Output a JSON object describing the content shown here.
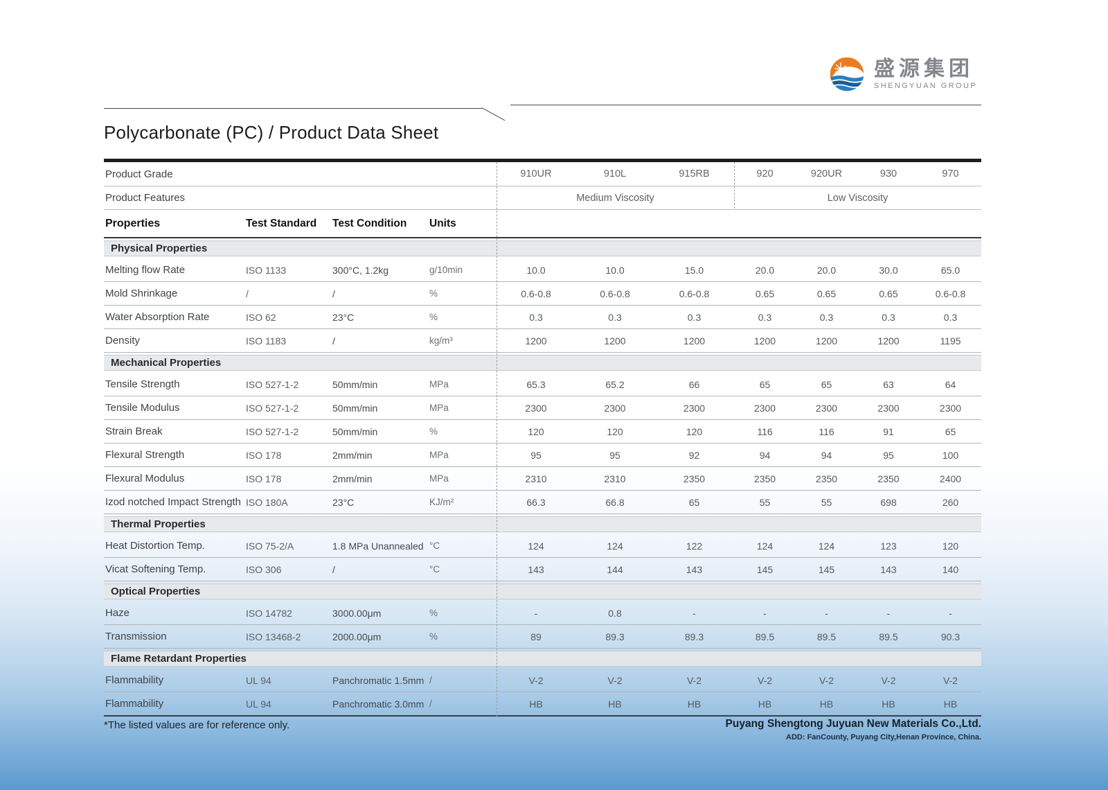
{
  "brand": {
    "logo_cn": "盛源集团",
    "logo_en": "SHENGYUAN GROUP",
    "colors": {
      "orange": "#ec7c1e",
      "blue": "#2a7fc1",
      "dark_blue": "#1b5e94",
      "gray_text": "#83878b"
    }
  },
  "title": "Polycarbonate (PC) / Product Data Sheet",
  "table": {
    "product_grade_label": "Product Grade",
    "product_features_label": "Product Features",
    "grades": [
      "910UR",
      "910L",
      "915RB",
      "920",
      "920UR",
      "930",
      "970"
    ],
    "feature_groups": [
      {
        "label": "Medium  Viscosity",
        "span": 3
      },
      {
        "label": "Low  Viscosity",
        "span": 4
      }
    ],
    "column_headers": [
      "Properties",
      "Test Standard",
      "Test Condition",
      "Units"
    ],
    "sections": [
      {
        "name": "Physical Properties",
        "rows": [
          {
            "property": "Melting flow Rate",
            "standard": "ISO 1133",
            "condition": "300°C, 1.2kg",
            "units": "g/10min",
            "values": [
              "10.0",
              "10.0",
              "15.0",
              "20.0",
              "20.0",
              "30.0",
              "65.0"
            ]
          },
          {
            "property": "Mold Shrinkage",
            "standard": "/",
            "condition": "/",
            "units": "%",
            "values": [
              "0.6-0.8",
              "0.6-0.8",
              "0.6-0.8",
              "0.65",
              "0.65",
              "0.65",
              "0.6-0.8"
            ]
          },
          {
            "property": "Water Absorption Rate",
            "standard": "ISO 62",
            "condition": "23°C",
            "units": "%",
            "values": [
              "0.3",
              "0.3",
              "0.3",
              "0.3",
              "0.3",
              "0.3",
              "0.3"
            ]
          },
          {
            "property": "Density",
            "standard": "ISO 1183",
            "condition": "/",
            "units": "kg/m³",
            "values": [
              "1200",
              "1200",
              "1200",
              "1200",
              "1200",
              "1200",
              "1195"
            ]
          }
        ]
      },
      {
        "name": "Mechanical Properties",
        "rows": [
          {
            "property": "Tensile Strength",
            "standard": "ISO 527-1-2",
            "condition": "50mm/min",
            "units": "MPa",
            "values": [
              "65.3",
              "65.2",
              "66",
              "65",
              "65",
              "63",
              "64"
            ]
          },
          {
            "property": "Tensile Modulus",
            "standard": "ISO 527-1-2",
            "condition": "50mm/min",
            "units": "MPa",
            "values": [
              "2300",
              "2300",
              "2300",
              "2300",
              "2300",
              "2300",
              "2300"
            ]
          },
          {
            "property": "Strain Break",
            "standard": "ISO 527-1-2",
            "condition": "50mm/min",
            "units": "%",
            "values": [
              "120",
              "120",
              "120",
              "116",
              "116",
              "91",
              "65"
            ]
          },
          {
            "property": "Flexural Strength",
            "standard": "ISO 178",
            "condition": "2mm/min",
            "units": "MPa",
            "values": [
              "95",
              "95",
              "92",
              "94",
              "94",
              "95",
              "100"
            ]
          },
          {
            "property": "Flexural Modulus",
            "standard": "ISO 178",
            "condition": "2mm/min",
            "units": "MPa",
            "values": [
              "2310",
              "2310",
              "2350",
              "2350",
              "2350",
              "2350",
              "2400"
            ]
          },
          {
            "property": "Izod notched Impact Strength",
            "standard": "ISO 180A",
            "condition": "23°C",
            "units": "KJ/m²",
            "values": [
              "66.3",
              "66.8",
              "65",
              "55",
              "55",
              "698",
              "260"
            ]
          }
        ]
      },
      {
        "name": "Thermal Properties",
        "rows": [
          {
            "property": "Heat Distortion Temp.",
            "standard": "ISO 75-2/A",
            "condition": "1.8 MPa Unannealed",
            "units": "°C",
            "values": [
              "124",
              "124",
              "122",
              "124",
              "124",
              "123",
              "120"
            ]
          },
          {
            "property": "Vicat Softening Temp.",
            "standard": "ISO 306",
            "condition": "/",
            "units": "°C",
            "values": [
              "143",
              "144",
              "143",
              "145",
              "145",
              "143",
              "140"
            ]
          }
        ]
      },
      {
        "name": "Optical Properties",
        "rows": [
          {
            "property": "Haze",
            "standard": "ISO 14782",
            "condition": "3000.00μm",
            "units": "%",
            "values": [
              "-",
              "0.8",
              "-",
              "-",
              "-",
              "-",
              "-"
            ]
          },
          {
            "property": "Transmission",
            "standard": "ISO 13468-2",
            "condition": "2000.00μm",
            "units": "%",
            "values": [
              "89",
              "89.3",
              "89.3",
              "89.5",
              "89.5",
              "89.5",
              "90.3"
            ]
          }
        ]
      },
      {
        "name": "Flame Retardant Properties",
        "rows": [
          {
            "property": "Flammability",
            "standard": "UL 94",
            "condition": "Panchromatic 1.5mm",
            "units": "/",
            "values": [
              "V-2",
              "V-2",
              "V-2",
              "V-2",
              "V-2",
              "V-2",
              "V-2"
            ]
          },
          {
            "property": "Flammability",
            "standard": "UL 94",
            "condition": "Panchromatic 3.0mm",
            "units": "/",
            "values": [
              "HB",
              "HB",
              "HB",
              "HB",
              "HB",
              "HB",
              "HB"
            ]
          }
        ]
      }
    ]
  },
  "footer": {
    "note": "*The listed values are for reference only.",
    "company": "Puyang Shengtong Juyuan New Materials Co.,Ltd.",
    "address": "ADD:  FanCounty, Puyang City,Henan Province, China."
  }
}
